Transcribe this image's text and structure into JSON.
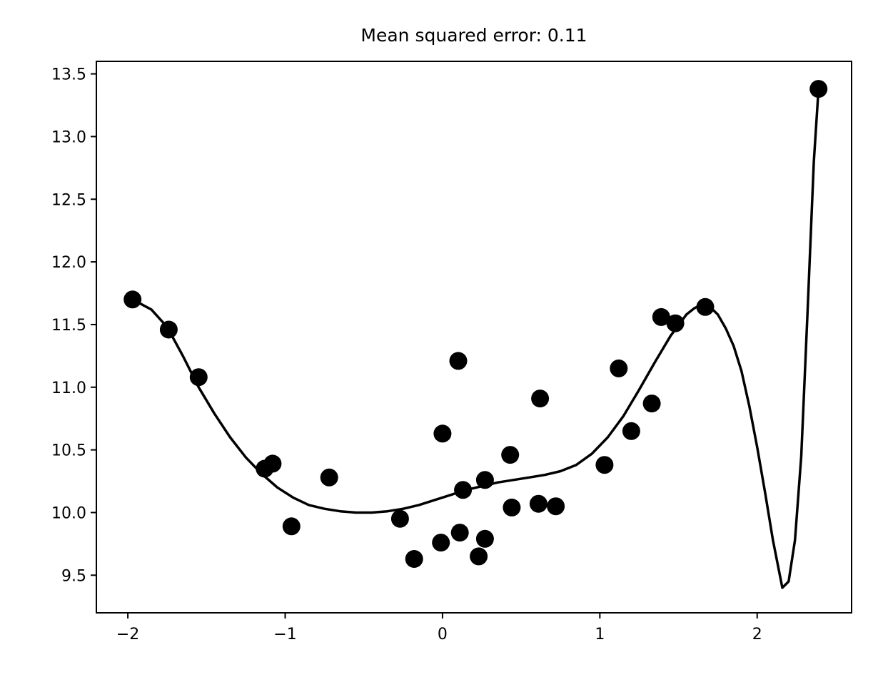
{
  "chart_data": {
    "type": "scatter",
    "title": "Mean squared error: 0.11",
    "xlabel": "",
    "ylabel": "",
    "xlim": [
      -2.2,
      2.6
    ],
    "ylim": [
      9.2,
      13.6
    ],
    "xticks": [
      -2,
      -1,
      0,
      1,
      2
    ],
    "xtick_labels": [
      "−2",
      "−1",
      "0",
      "1",
      "2"
    ],
    "yticks": [
      9.5,
      10.0,
      10.5,
      11.0,
      11.5,
      12.0,
      12.5,
      13.0,
      13.5
    ],
    "ytick_labels": [
      "9.5",
      "10.0",
      "10.5",
      "11.0",
      "11.5",
      "12.0",
      "12.5",
      "13.0",
      "13.5"
    ],
    "grid": false,
    "series": [
      {
        "kind": "points",
        "color": "#000000",
        "x": [
          -1.97,
          -1.74,
          -1.55,
          -1.13,
          -1.08,
          -0.96,
          -0.72,
          -0.27,
          -0.18,
          -0.01,
          0.0,
          0.1,
          0.11,
          0.13,
          0.23,
          0.27,
          0.27,
          0.43,
          0.44,
          0.61,
          0.62,
          0.72,
          1.03,
          1.12,
          1.2,
          1.33,
          1.39,
          1.48,
          1.67,
          2.39
        ],
        "y": [
          11.7,
          11.46,
          11.08,
          10.35,
          10.39,
          9.89,
          10.28,
          9.95,
          9.63,
          9.76,
          10.63,
          11.21,
          9.84,
          10.18,
          9.65,
          10.26,
          9.79,
          10.46,
          10.04,
          10.07,
          10.91,
          10.05,
          10.38,
          11.15,
          10.65,
          10.87,
          11.56,
          11.51,
          11.64,
          13.38
        ]
      },
      {
        "kind": "line",
        "color": "#000000",
        "x": [
          -1.97,
          -1.85,
          -1.75,
          -1.65,
          -1.55,
          -1.45,
          -1.35,
          -1.25,
          -1.15,
          -1.05,
          -0.95,
          -0.85,
          -0.75,
          -0.65,
          -0.55,
          -0.45,
          -0.35,
          -0.25,
          -0.15,
          -0.05,
          0.05,
          0.15,
          0.25,
          0.35,
          0.45,
          0.55,
          0.65,
          0.75,
          0.85,
          0.95,
          1.05,
          1.15,
          1.25,
          1.35,
          1.45,
          1.55,
          1.6,
          1.65,
          1.7,
          1.75,
          1.8,
          1.85,
          1.9,
          1.95,
          2.0,
          2.05,
          2.1,
          2.16,
          2.2,
          2.24,
          2.28,
          2.32,
          2.36,
          2.39
        ],
        "y": [
          11.7,
          11.62,
          11.48,
          11.25,
          11.0,
          10.79,
          10.6,
          10.44,
          10.31,
          10.2,
          10.12,
          10.06,
          10.03,
          10.01,
          10.0,
          10.0,
          10.01,
          10.03,
          10.06,
          10.1,
          10.14,
          10.18,
          10.21,
          10.24,
          10.26,
          10.28,
          10.3,
          10.33,
          10.38,
          10.47,
          10.6,
          10.77,
          10.98,
          11.2,
          11.41,
          11.58,
          11.63,
          11.66,
          11.64,
          11.58,
          11.47,
          11.33,
          11.13,
          10.85,
          10.52,
          10.16,
          9.78,
          9.4,
          9.45,
          9.78,
          10.45,
          11.6,
          12.8,
          13.38
        ]
      }
    ]
  }
}
